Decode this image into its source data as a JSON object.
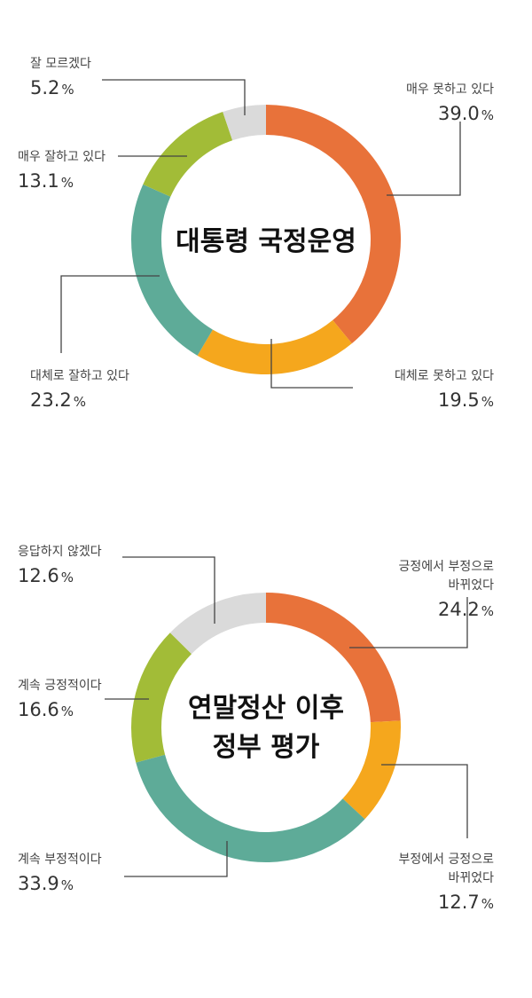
{
  "chart_data": [
    {
      "type": "pie",
      "title": "대통령 국정운영",
      "categories": [
        "매우 못하고 있다",
        "대체로 못하고 있다",
        "대체로 잘하고 있다",
        "매우 잘하고 있다",
        "잘 모르겠다"
      ],
      "values": [
        39.0,
        19.5,
        23.2,
        13.1,
        5.2
      ],
      "labels": [
        "39.0",
        "19.5",
        "23.2",
        "13.1",
        "5.2"
      ],
      "unit": "%",
      "colors": [
        "#E8723A",
        "#F5A71D",
        "#5EAB98",
        "#A2BC37",
        "#DADADA"
      ]
    },
    {
      "type": "pie",
      "title": "연말정산 이후 정부 평가",
      "title_lines": [
        "연말정산 이후",
        "정부 평가"
      ],
      "categories": [
        "긍정에서 부정으로 바뀌었다",
        "부정에서 긍정으로 바뀌었다",
        "계속 부정적이다",
        "계속 긍정적이다",
        "응답하지 않겠다"
      ],
      "category_lines": [
        [
          "긍정에서 부정으로",
          "바뀌었다"
        ],
        [
          "부정에서 긍정으로",
          "바뀌었다"
        ],
        [
          "계속 부정적이다"
        ],
        [
          "계속 긍정적이다"
        ],
        [
          "응답하지 않겠다"
        ]
      ],
      "values": [
        24.2,
        12.7,
        33.9,
        16.6,
        12.6
      ],
      "labels": [
        "24.2",
        "12.7",
        "33.9",
        "16.6",
        "12.6"
      ],
      "unit": "%",
      "colors": [
        "#E8723A",
        "#F5A71D",
        "#5EAB98",
        "#A2BC37",
        "#DADADA"
      ]
    }
  ]
}
